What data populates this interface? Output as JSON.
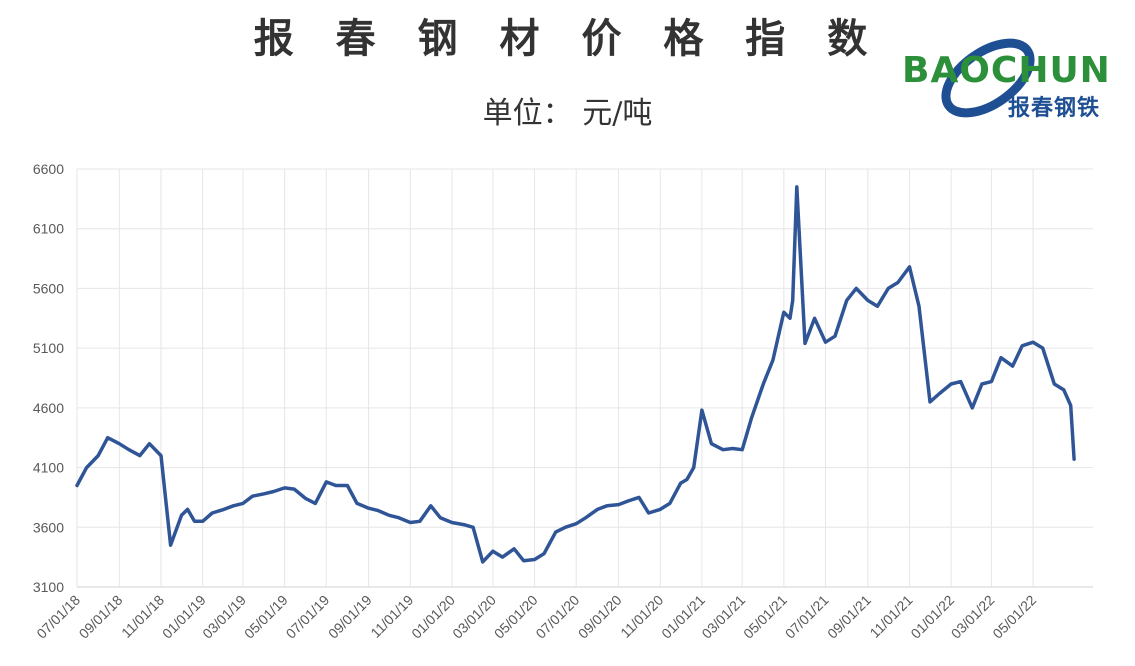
{
  "chart_data": {
    "type": "line",
    "title": "报 春 钢 材 价 格 指 数",
    "subtitle": "单位： 元/吨",
    "logo": {
      "word": "BAOCHUN",
      "chinese": "报春钢铁",
      "colors": {
        "word": "#2c8f3a",
        "ring": "#1e4f93",
        "chinese": "#1e4f93"
      }
    },
    "ylim": [
      3100,
      6600
    ],
    "y_ticks": [
      "6600",
      "6100",
      "5600",
      "5100",
      "4600",
      "4100",
      "3600",
      "3100"
    ],
    "x_ticks": [
      "07/01/18",
      "09/01/18",
      "11/01/18",
      "01/01/19",
      "03/01/19",
      "05/01/19",
      "07/01/19",
      "09/01/19",
      "11/01/19",
      "01/01/20",
      "03/01/20",
      "05/01/20",
      "07/01/20",
      "09/01/20",
      "11/01/20",
      "01/01/21",
      "03/01/21",
      "05/01/21",
      "07/01/21",
      "09/01/21",
      "11/01/21",
      "01/01/22",
      "03/01/22",
      "05/01/22"
    ],
    "grid": true,
    "line_color": "#2f5597",
    "series": [
      {
        "x": [
          "07/01/18",
          "07/15/18",
          "08/01/18",
          "08/15/18",
          "09/01/18",
          "09/15/18",
          "10/01/18",
          "10/15/18",
          "11/01/18",
          "11/15/18",
          "12/01/18",
          "12/10/18",
          "12/20/18",
          "01/01/19",
          "01/15/19",
          "02/01/19",
          "02/15/19",
          "03/01/19",
          "03/15/19",
          "04/01/19",
          "04/15/19",
          "05/01/19",
          "05/15/19",
          "06/01/19",
          "06/15/19",
          "07/01/19",
          "07/15/19",
          "08/01/19",
          "08/15/19",
          "09/01/19",
          "09/15/19",
          "10/01/19",
          "10/15/19",
          "11/01/19",
          "11/15/19",
          "12/01/19",
          "12/15/19",
          "01/01/20",
          "01/20/20",
          "02/01/20",
          "02/15/20",
          "03/01/20",
          "03/15/20",
          "04/01/20",
          "04/15/20",
          "05/01/20",
          "05/15/20",
          "06/01/20",
          "06/15/20",
          "07/01/20",
          "07/15/20",
          "08/01/20",
          "08/15/20",
          "09/01/20",
          "09/15/20",
          "10/01/20",
          "10/15/20",
          "11/01/20",
          "11/15/20",
          "12/01/20",
          "12/10/20",
          "12/20/20",
          "01/01/21",
          "01/15/21",
          "02/01/21",
          "02/15/21",
          "03/01/21",
          "03/15/21",
          "04/01/21",
          "04/15/21",
          "05/01/21",
          "05/10/21",
          "05/14/21",
          "05/20/21",
          "06/01/21",
          "06/15/21",
          "07/01/21",
          "07/15/21",
          "08/01/21",
          "08/15/21",
          "09/01/21",
          "09/15/21",
          "10/01/21",
          "10/15/21",
          "11/01/21",
          "11/15/21",
          "12/01/21",
          "12/15/21",
          "01/01/22",
          "01/15/22",
          "02/01/22",
          "02/15/22",
          "03/01/22",
          "03/15/22",
          "04/01/22",
          "04/15/22",
          "05/01/22",
          "05/15/22",
          "06/01/22",
          "06/15/22",
          "06/25/22",
          "06/30/22"
        ],
        "values": [
          3950,
          4100,
          4200,
          4350,
          4300,
          4250,
          4200,
          4300,
          4200,
          3450,
          3700,
          3750,
          3650,
          3650,
          3720,
          3750,
          3780,
          3800,
          3860,
          3880,
          3900,
          3930,
          3920,
          3840,
          3800,
          3980,
          3950,
          3950,
          3800,
          3760,
          3740,
          3700,
          3680,
          3640,
          3650,
          3780,
          3680,
          3640,
          3620,
          3600,
          3310,
          3400,
          3350,
          3420,
          3320,
          3330,
          3380,
          3560,
          3600,
          3630,
          3680,
          3750,
          3780,
          3790,
          3820,
          3850,
          3720,
          3750,
          3800,
          3970,
          4000,
          4100,
          4580,
          4300,
          4250,
          4260,
          4250,
          4520,
          4800,
          5000,
          5400,
          5350,
          5500,
          6450,
          5140,
          5350,
          5150,
          5200,
          5500,
          5600,
          5500,
          5450,
          5600,
          5650,
          5780,
          5450,
          4650,
          4720,
          4800,
          4820,
          4600,
          4800,
          4820,
          5020,
          4950,
          5120,
          5150,
          5100,
          4800,
          4750,
          4620,
          4170
        ]
      }
    ]
  }
}
